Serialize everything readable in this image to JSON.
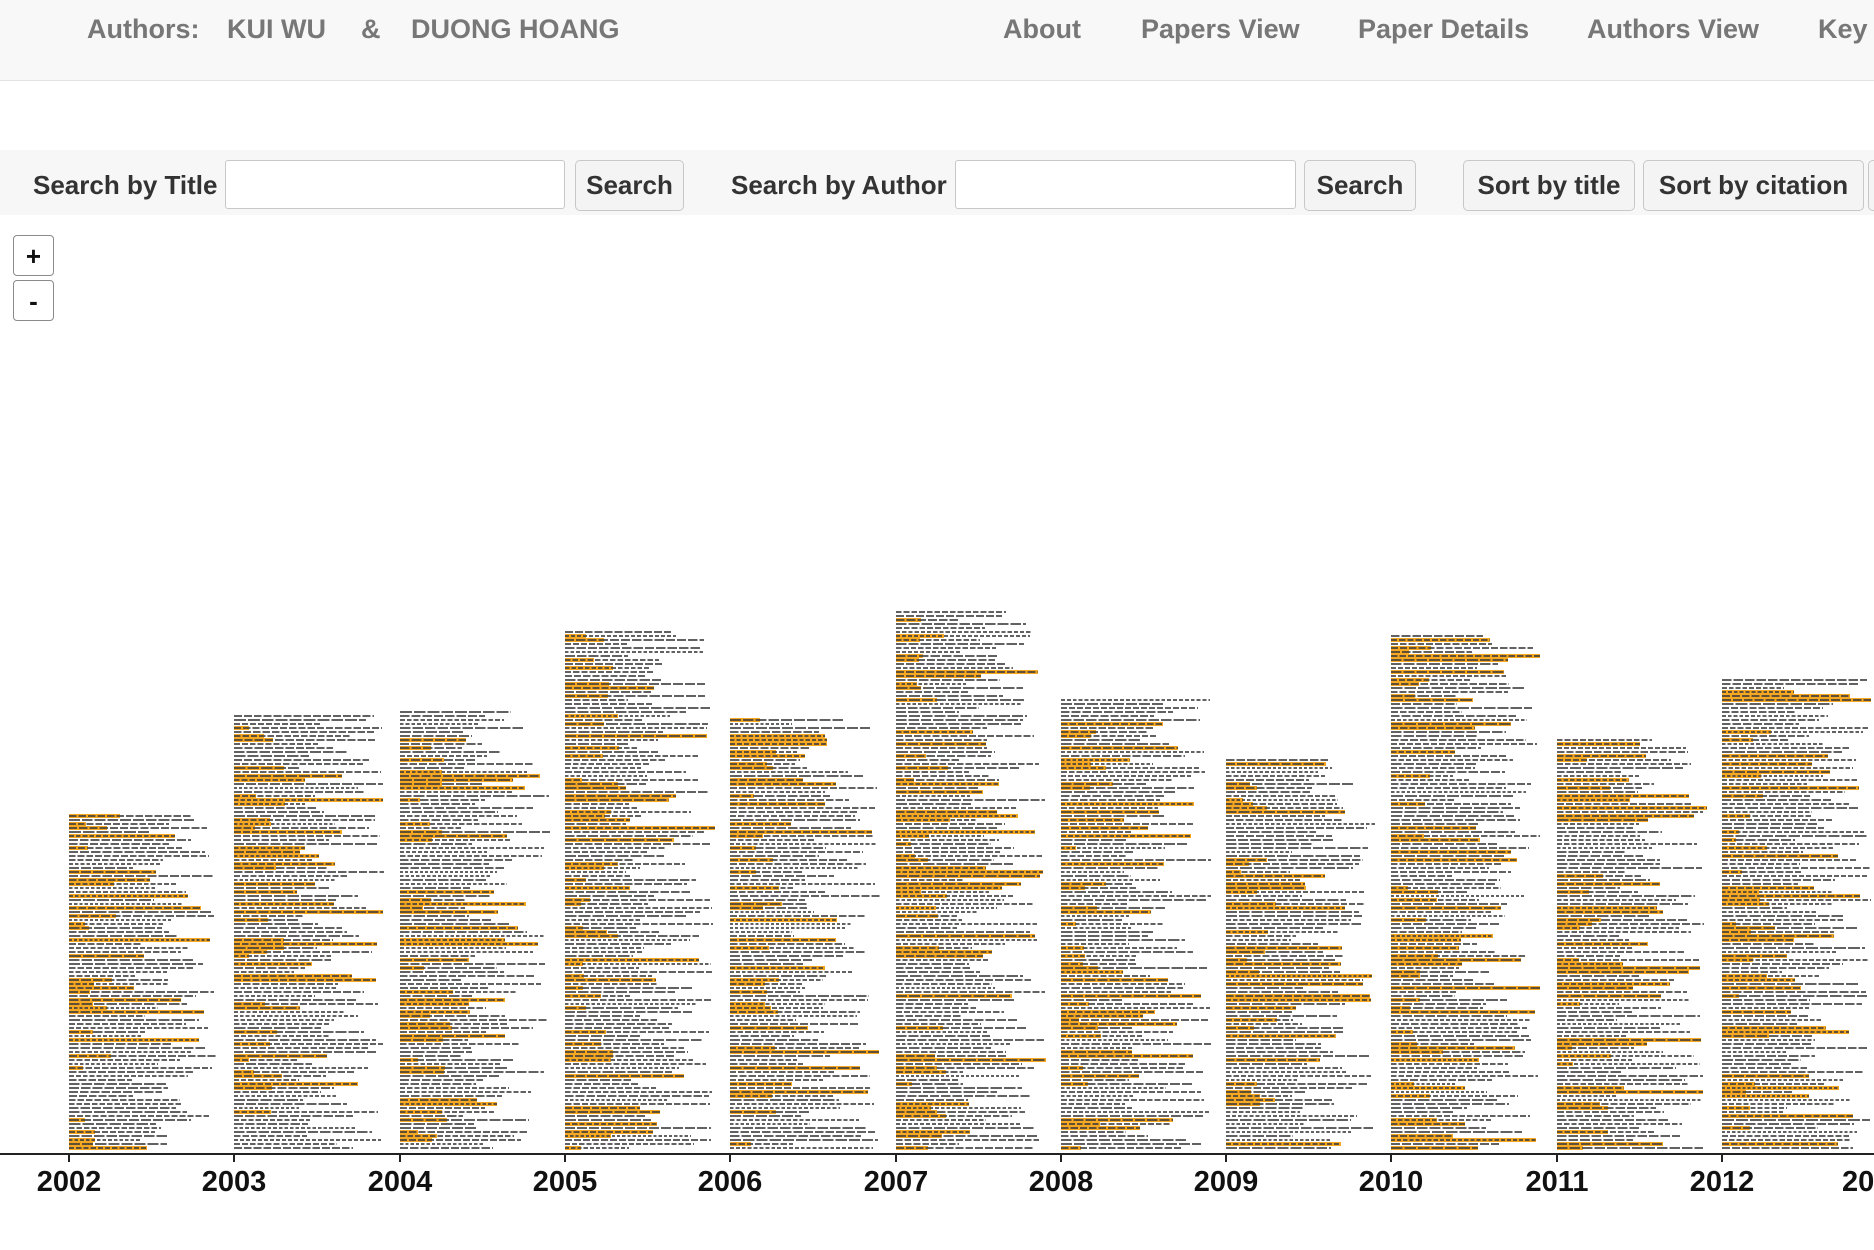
{
  "nav": {
    "authors_label": "Authors:",
    "author_1": "KUI WU",
    "separator": "&",
    "author_2": "DUONG HOANG",
    "links": [
      "About",
      "Papers View",
      "Paper Details",
      "Authors View",
      "Key"
    ]
  },
  "search": {
    "title_label": "Search by Title",
    "title_value": "",
    "title_button": "Search",
    "author_label": "Search by Author",
    "author_value": "",
    "author_button": "Search",
    "sort_title": "Sort by title",
    "sort_citation": "Sort by citation"
  },
  "zoom": {
    "in_label": "+",
    "out_label": "-"
  },
  "chart_data": {
    "type": "bar",
    "categories": [
      "2002",
      "2003",
      "2004",
      "2005",
      "2006",
      "2007",
      "2008",
      "2009",
      "2010",
      "2011",
      "2012"
    ],
    "values": [
      84,
      109,
      110,
      130,
      108,
      135,
      113,
      98,
      129,
      103,
      118
    ],
    "highlighted": [
      32,
      42,
      42,
      50,
      40,
      52,
      44,
      37,
      50,
      39,
      46
    ],
    "tick_labels": [
      "2002",
      "2003",
      "2004",
      "2005",
      "2006",
      "2007",
      "2008",
      "2009",
      "2010",
      "2011",
      "2012",
      "20"
    ],
    "xlabel": "",
    "ylabel": "",
    "grid": false,
    "colors": {
      "highlight": "#f7a823",
      "text": "#3a3a3a",
      "axis": "#222222"
    }
  }
}
